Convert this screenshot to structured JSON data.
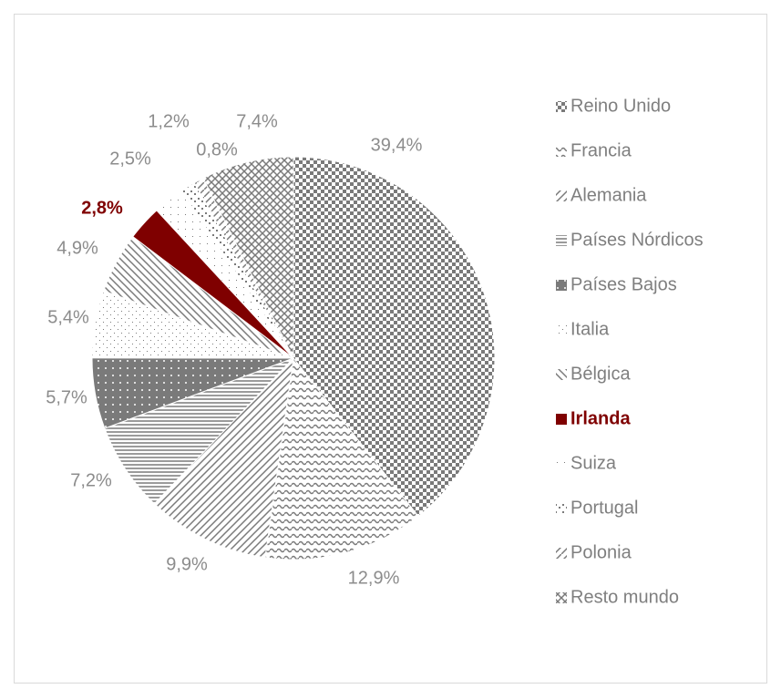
{
  "chart_data": {
    "type": "pie",
    "categories": [
      "Reino Unido",
      "Francia",
      "Alemania",
      "Países Nórdicos",
      "Países Bajos",
      "Italia",
      "Bélgica",
      "Irlanda",
      "Suiza",
      "Portugal",
      "Polonia",
      "Resto mundo"
    ],
    "values": [
      39.4,
      12.9,
      9.9,
      7.2,
      5.7,
      5.4,
      4.9,
      2.8,
      2.5,
      1.2,
      0.8,
      7.4
    ],
    "value_labels": [
      "39,4%",
      "12,9%",
      "9,9%",
      "7,2%",
      "5,7%",
      "5,4%",
      "4,9%",
      "2,8%",
      "2,5%",
      "1,2%",
      "0,8%",
      "7,4%"
    ],
    "colors": [
      "#7a7a7a",
      "#7a7a7a",
      "#7a7a7a",
      "#7a7a7a",
      "#7a7a7a",
      "#7a7a7a",
      "#7a7a7a",
      "#7f0000",
      "#7a7a7a",
      "#7a7a7a",
      "#7a7a7a",
      "#7a7a7a"
    ],
    "label_colors": [
      "#8c8c8c",
      "#8c8c8c",
      "#8c8c8c",
      "#8c8c8c",
      "#8c8c8c",
      "#8c8c8c",
      "#8c8c8c",
      "#7f0000",
      "#8c8c8c",
      "#8c8c8c",
      "#8c8c8c",
      "#8c8c8c"
    ],
    "legend": "right"
  }
}
